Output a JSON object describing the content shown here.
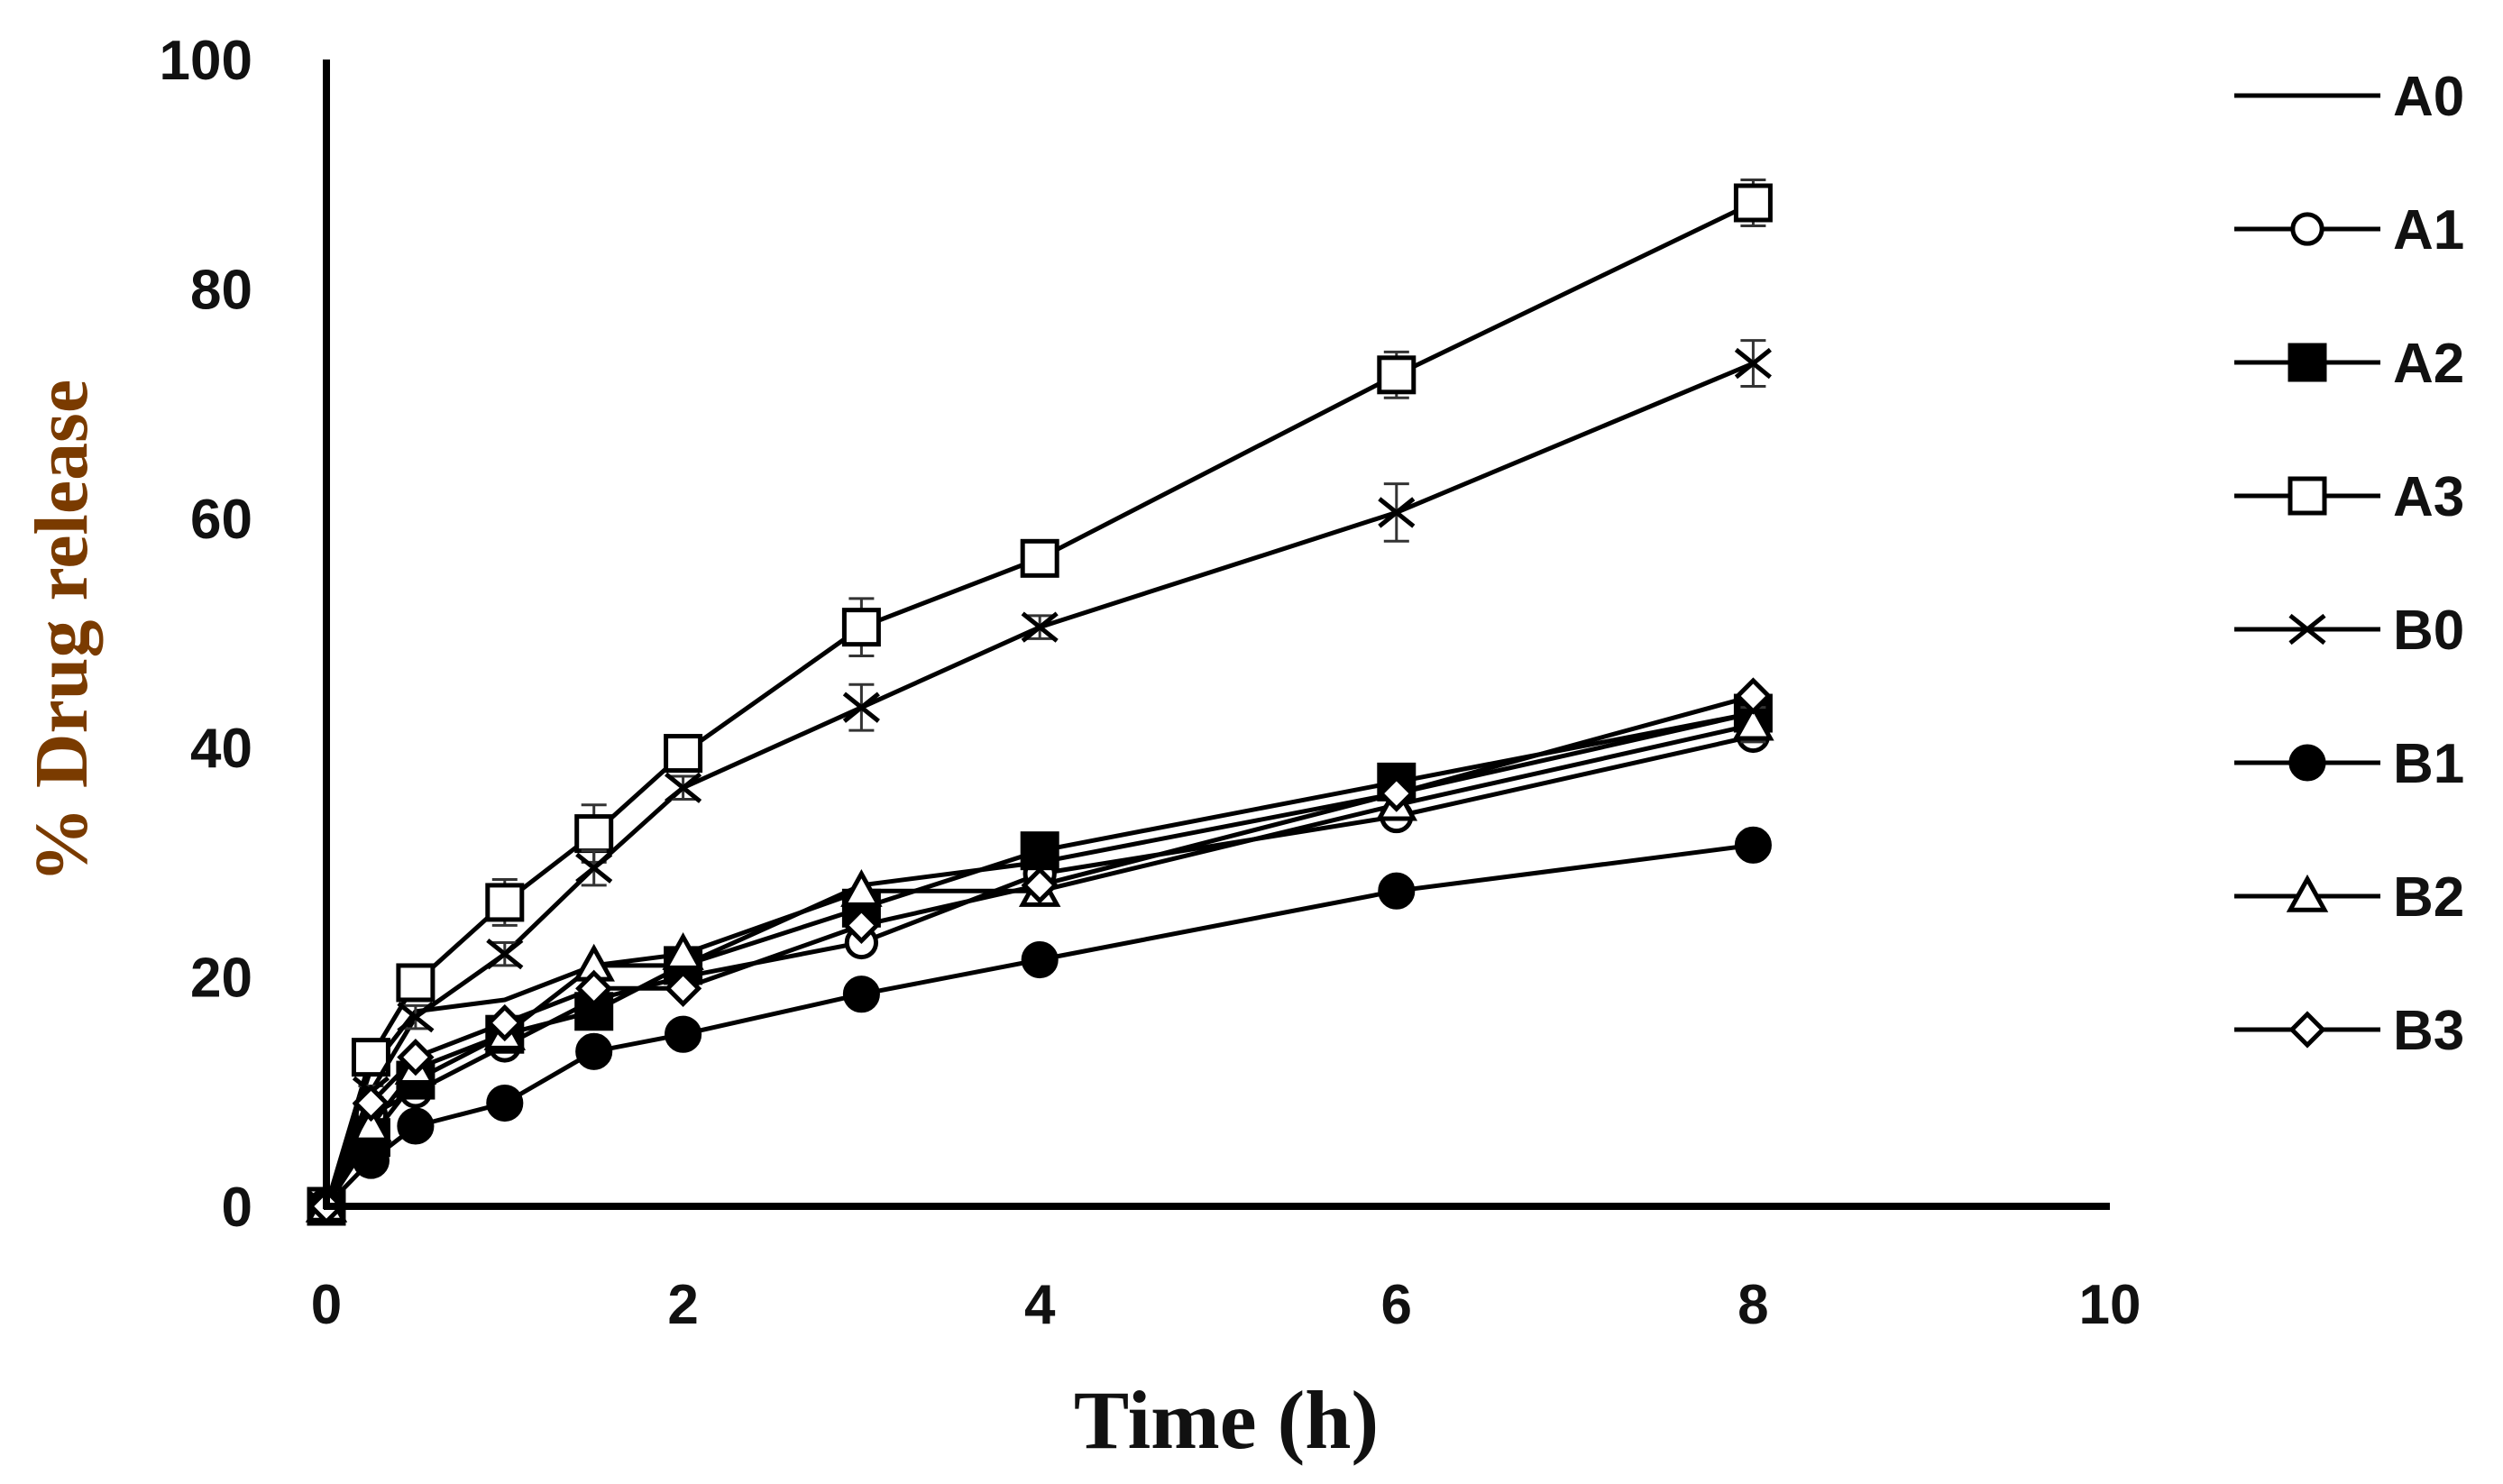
{
  "chart_data": {
    "type": "line",
    "title": "",
    "xlabel": "Time (h)",
    "ylabel": "% Drug release",
    "xlim": [
      0,
      10
    ],
    "ylim": [
      0,
      100
    ],
    "xticks": [
      "0",
      "2",
      "4",
      "6",
      "8",
      "10"
    ],
    "yticks": [
      "0",
      "20",
      "40",
      "60",
      "80",
      "100"
    ],
    "grid": false,
    "legend_position": "right",
    "colors": {
      "axis": "#000000",
      "series": "#000000",
      "ylabel": "#7a3b00",
      "text": "#111111"
    },
    "x": [
      0,
      0.25,
      0.5,
      1,
      1.5,
      2,
      3,
      4,
      6,
      8
    ],
    "series": [
      {
        "name": "A0",
        "marker": "none",
        "values": [
          0,
          12,
          17,
          18,
          21,
          21,
          28,
          30,
          36,
          43
        ],
        "errors": [
          0,
          0,
          0,
          0,
          0,
          0,
          0,
          0,
          0,
          0
        ]
      },
      {
        "name": "A1",
        "marker": "circle-open",
        "values": [
          0,
          8,
          10,
          14,
          18,
          20,
          23,
          29,
          34,
          41
        ],
        "errors": [
          0,
          0,
          0,
          0,
          0,
          0,
          0,
          0,
          0,
          0
        ]
      },
      {
        "name": "A2",
        "marker": "square-filled",
        "values": [
          0,
          6,
          11,
          15,
          17,
          21,
          26,
          31,
          37,
          43
        ],
        "errors": [
          0,
          0,
          0,
          0,
          0,
          0,
          0,
          0,
          0,
          0
        ]
      },
      {
        "name": "A3",
        "marker": "square-open",
        "values": [
          0,
          13,
          19.5,
          26.5,
          32.5,
          39.5,
          50.5,
          56.5,
          72.5,
          87.5
        ],
        "errors": [
          0,
          1,
          1,
          2,
          2.5,
          1.5,
          2.5,
          1.5,
          2,
          2
        ]
      },
      {
        "name": "B0",
        "marker": "x",
        "values": [
          0,
          10,
          16.5,
          22,
          29.5,
          36.5,
          43.5,
          50.5,
          60.5,
          73.5
        ],
        "errors": [
          0,
          0.5,
          1,
          1,
          1.5,
          1,
          2,
          1,
          2.5,
          2
        ]
      },
      {
        "name": "B1",
        "marker": "circle-filled",
        "values": [
          0,
          4,
          7,
          9,
          13.5,
          15,
          18.5,
          21.5,
          27.5,
          31.5
        ],
        "errors": [
          0,
          0,
          0,
          0,
          0,
          0,
          0,
          0,
          0,
          0
        ]
      },
      {
        "name": "B2",
        "marker": "triangle-open",
        "values": [
          0,
          7,
          12,
          15,
          21,
          22,
          27.5,
          27.5,
          35,
          42
        ],
        "errors": [
          0,
          0,
          0,
          0,
          0,
          0,
          0,
          0,
          0,
          1.5
        ]
      },
      {
        "name": "B3",
        "marker": "diamond-open",
        "values": [
          0,
          9,
          13,
          16,
          19,
          19,
          24.5,
          28,
          36,
          44.5
        ],
        "errors": [
          0,
          0,
          0,
          0,
          0,
          0,
          0,
          0,
          0,
          0
        ]
      }
    ]
  }
}
